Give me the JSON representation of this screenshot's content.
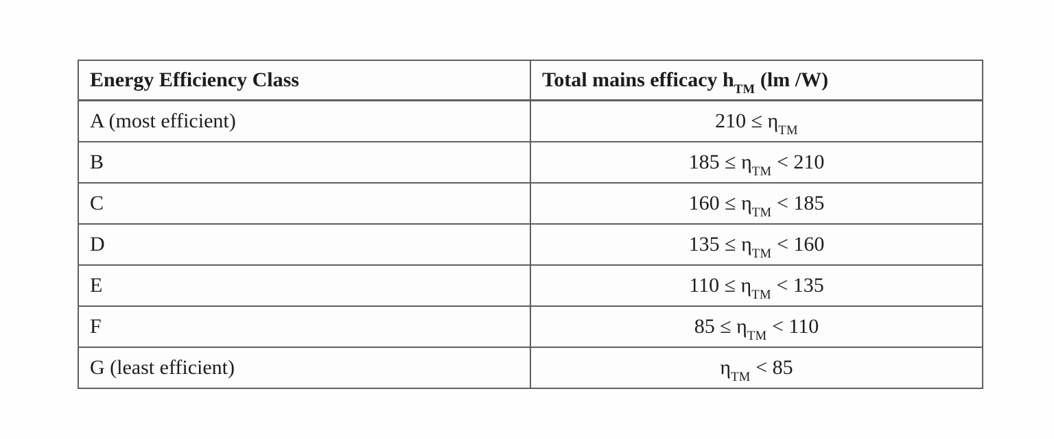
{
  "page": {
    "background_color": "#fefefe"
  },
  "table": {
    "border_color": "#5f5f5f",
    "text_color": "#1d1d1d",
    "header": {
      "class_label": "Energy Efficiency Class",
      "efficacy_pre": "Total mains efficacy h",
      "efficacy_sub": "TM",
      "efficacy_post": " (lm /W)"
    },
    "rows": [
      {
        "class_label": "A (most efficient)",
        "value_pre": "210 ≤ η",
        "value_sub": "TM",
        "value_post": ""
      },
      {
        "class_label": "B",
        "value_pre": "185 ≤ η",
        "value_sub": "TM",
        "value_post": " < 210"
      },
      {
        "class_label": "C",
        "value_pre": "160 ≤ η",
        "value_sub": "TM",
        "value_post": " < 185"
      },
      {
        "class_label": "D",
        "value_pre": "135 ≤ η",
        "value_sub": "TM",
        "value_post": " < 160"
      },
      {
        "class_label": "E",
        "value_pre": "110 ≤ η",
        "value_sub": "TM",
        "value_post": " < 135"
      },
      {
        "class_label": "F",
        "value_pre": "85 ≤ η",
        "value_sub": "TM",
        "value_post": " < 110"
      },
      {
        "class_label": "G (least efficient)",
        "value_pre": "η",
        "value_sub": "TM",
        "value_post": " < 85"
      }
    ]
  }
}
